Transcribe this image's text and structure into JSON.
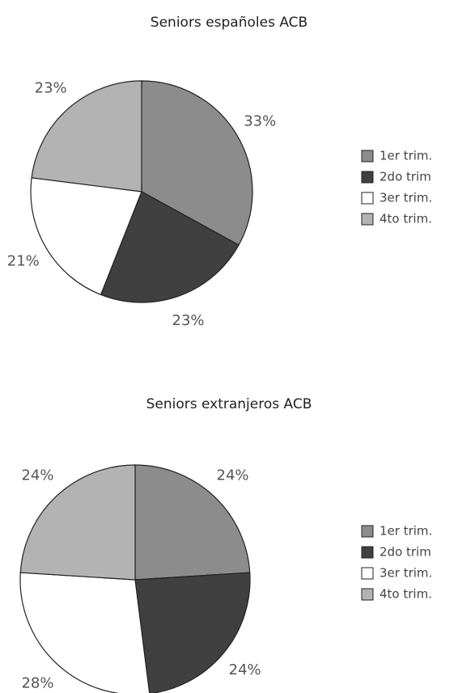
{
  "chart_data": [
    {
      "type": "pie",
      "title": "Seniors españoles ACB",
      "categories": [
        "1er trim.",
        "2do trim",
        "3er trim.",
        "4to trim."
      ],
      "values": [
        33,
        23,
        21,
        23
      ],
      "value_labels": [
        "33%",
        "23%",
        "21%",
        "23%"
      ],
      "colors": [
        "#8c8c8c",
        "#404040",
        "#ffffff",
        "#b3b3b3"
      ],
      "legend": "right"
    },
    {
      "type": "pie",
      "title": "Seniors extranjeros ACB",
      "categories": [
        "1er trim.",
        "2do trim",
        "3er trim.",
        "4to trim."
      ],
      "values": [
        24,
        24,
        28,
        24
      ],
      "value_labels": [
        "24%",
        "24%",
        "28%",
        "24%"
      ],
      "colors": [
        "#8c8c8c",
        "#404040",
        "#ffffff",
        "#b3b3b3"
      ],
      "legend": "right"
    }
  ]
}
